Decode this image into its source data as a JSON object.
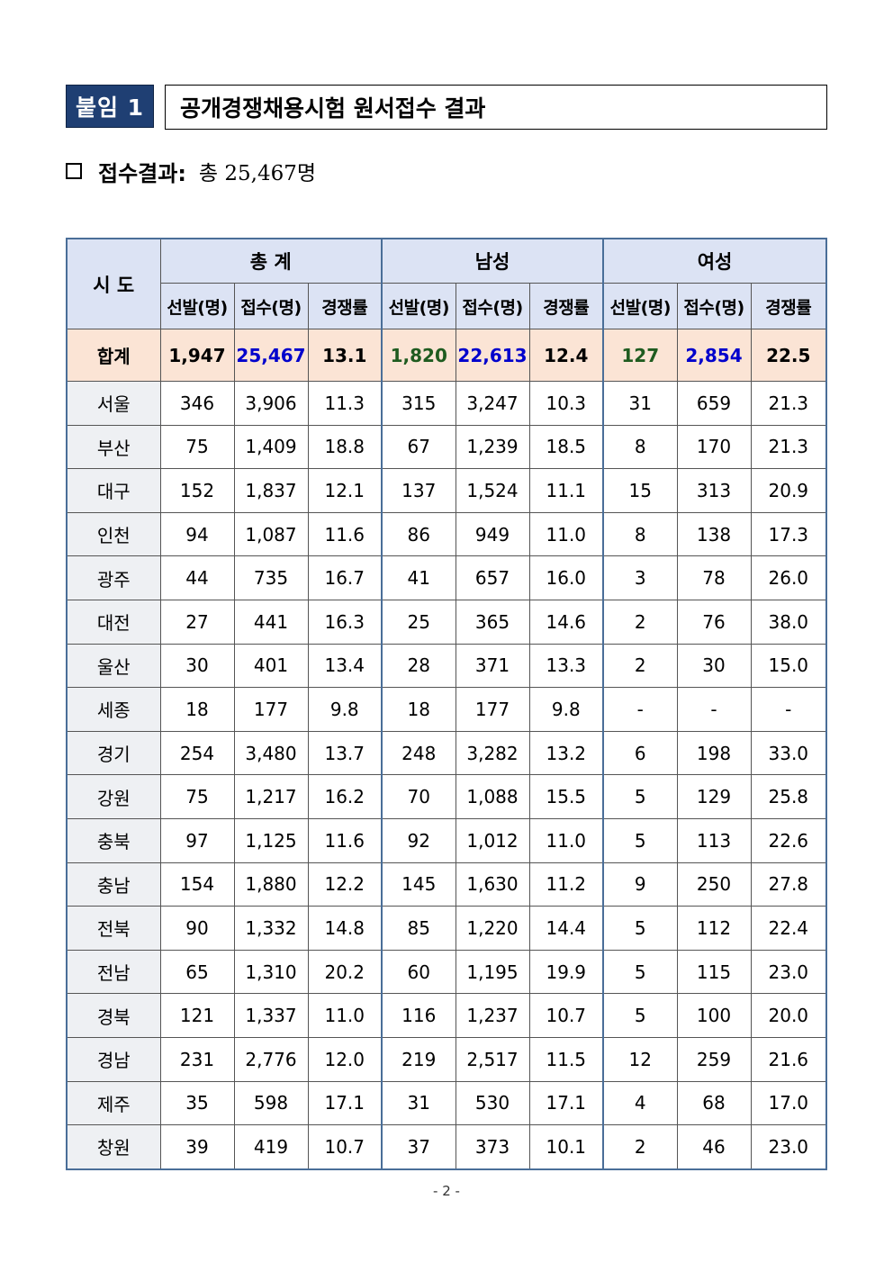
{
  "header": {
    "badge": "붙임 1",
    "title": "공개경쟁채용시험 원서접수 결과"
  },
  "summary": {
    "label": "접수결과:",
    "total": "총 25,467명"
  },
  "table": {
    "region_header": "시 도",
    "groups": [
      "총 계",
      "남성",
      "여성"
    ],
    "subheaders": [
      "선발(명)",
      "접수(명)",
      "경쟁률",
      "선발(명)",
      "접수(명)",
      "경쟁률",
      "선발(명)",
      "접수(명)",
      "경쟁률"
    ],
    "total_row": {
      "region": "합계",
      "values": [
        "1,947",
        "25,467",
        "13.1",
        "1,820",
        "22,613",
        "12.4",
        "127",
        "2,854",
        "22.5"
      ]
    },
    "rows": [
      {
        "region": "서울",
        "values": [
          "346",
          "3,906",
          "11.3",
          "315",
          "3,247",
          "10.3",
          "31",
          "659",
          "21.3"
        ]
      },
      {
        "region": "부산",
        "values": [
          "75",
          "1,409",
          "18.8",
          "67",
          "1,239",
          "18.5",
          "8",
          "170",
          "21.3"
        ]
      },
      {
        "region": "대구",
        "values": [
          "152",
          "1,837",
          "12.1",
          "137",
          "1,524",
          "11.1",
          "15",
          "313",
          "20.9"
        ]
      },
      {
        "region": "인천",
        "values": [
          "94",
          "1,087",
          "11.6",
          "86",
          "949",
          "11.0",
          "8",
          "138",
          "17.3"
        ]
      },
      {
        "region": "광주",
        "values": [
          "44",
          "735",
          "16.7",
          "41",
          "657",
          "16.0",
          "3",
          "78",
          "26.0"
        ]
      },
      {
        "region": "대전",
        "values": [
          "27",
          "441",
          "16.3",
          "25",
          "365",
          "14.6",
          "2",
          "76",
          "38.0"
        ]
      },
      {
        "region": "울산",
        "values": [
          "30",
          "401",
          "13.4",
          "28",
          "371",
          "13.3",
          "2",
          "30",
          "15.0"
        ]
      },
      {
        "region": "세종",
        "values": [
          "18",
          "177",
          "9.8",
          "18",
          "177",
          "9.8",
          "-",
          "-",
          "-"
        ]
      },
      {
        "region": "경기",
        "values": [
          "254",
          "3,480",
          "13.7",
          "248",
          "3,282",
          "13.2",
          "6",
          "198",
          "33.0"
        ]
      },
      {
        "region": "강원",
        "values": [
          "75",
          "1,217",
          "16.2",
          "70",
          "1,088",
          "15.5",
          "5",
          "129",
          "25.8"
        ]
      },
      {
        "region": "충북",
        "values": [
          "97",
          "1,125",
          "11.6",
          "92",
          "1,012",
          "11.0",
          "5",
          "113",
          "22.6"
        ]
      },
      {
        "region": "충남",
        "values": [
          "154",
          "1,880",
          "12.2",
          "145",
          "1,630",
          "11.2",
          "9",
          "250",
          "27.8"
        ]
      },
      {
        "region": "전북",
        "values": [
          "90",
          "1,332",
          "14.8",
          "85",
          "1,220",
          "14.4",
          "5",
          "112",
          "22.4"
        ]
      },
      {
        "region": "전남",
        "values": [
          "65",
          "1,310",
          "20.2",
          "60",
          "1,195",
          "19.9",
          "5",
          "115",
          "23.0"
        ]
      },
      {
        "region": "경북",
        "values": [
          "121",
          "1,337",
          "11.0",
          "116",
          "1,237",
          "10.7",
          "5",
          "100",
          "20.0"
        ]
      },
      {
        "region": "경남",
        "values": [
          "231",
          "2,776",
          "12.0",
          "219",
          "2,517",
          "11.5",
          "12",
          "259",
          "21.6"
        ]
      },
      {
        "region": "제주",
        "values": [
          "35",
          "598",
          "17.1",
          "31",
          "530",
          "17.1",
          "4",
          "68",
          "17.0"
        ]
      },
      {
        "region": "창원",
        "values": [
          "39",
          "419",
          "10.7",
          "37",
          "373",
          "10.1",
          "2",
          "46",
          "23.0"
        ]
      }
    ]
  },
  "footer": {
    "page": "- 2 -"
  },
  "colors": {
    "badge_bg": "#1f3f73",
    "header_bg": "#dce3f4",
    "total_row_bg": "#fbe4d5",
    "selection_color": "#1f5b1f",
    "application_color": "#0000cc"
  }
}
